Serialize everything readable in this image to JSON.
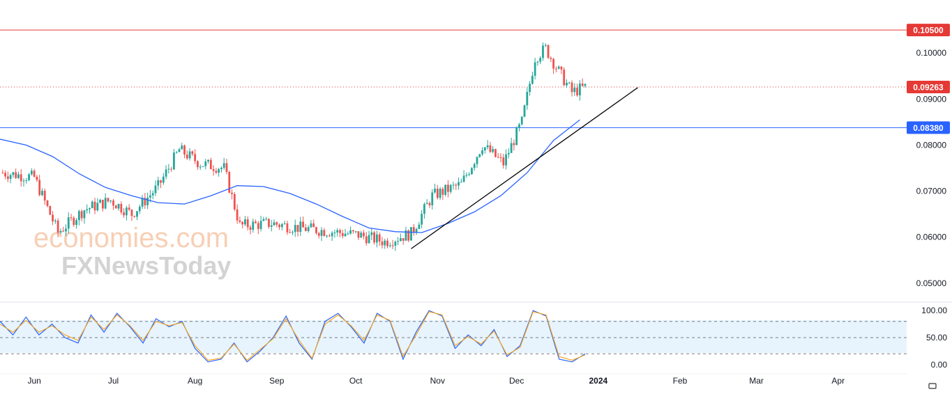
{
  "chart_data": [
    {
      "type": "candlestick",
      "panel": "price",
      "y_range": [
        0.0465,
        0.1085
      ],
      "y_ticks": [
        "0.10000",
        "0.09000",
        "0.08000",
        "0.07000",
        "0.06000",
        "0.05000"
      ],
      "x_range_days": "2023-05-19 to 2024-04-27",
      "x_ticks": [
        "Jun",
        "Jul",
        "Aug",
        "Sep",
        "Oct",
        "Nov",
        "Dec",
        "2024",
        "Feb",
        "Mar",
        "Apr"
      ],
      "horizontal_levels": [
        {
          "label": "0.10500",
          "value": 0.105,
          "color": "#e53935",
          "style": "solid"
        },
        {
          "label": "0.09263",
          "value": 0.09263,
          "color": "#e53935",
          "style": "dotted"
        },
        {
          "label": "0.08380",
          "value": 0.0838,
          "color": "#2962ff",
          "style": "solid"
        }
      ],
      "trendline": {
        "from": [
          "2023-10-22",
          0.0575
        ],
        "to": [
          "2024-01-16",
          0.0925
        ],
        "color": "#000000"
      },
      "moving_average": {
        "color": "#2962ff",
        "points": [
          [
            "2023-05-19",
            0.0813
          ],
          [
            "2023-05-29",
            0.08
          ],
          [
            "2023-06-08",
            0.0775
          ],
          [
            "2023-06-18",
            0.0738
          ],
          [
            "2023-06-28",
            0.0708
          ],
          [
            "2023-07-08",
            0.069
          ],
          [
            "2023-07-18",
            0.0675
          ],
          [
            "2023-07-28",
            0.0672
          ],
          [
            "2023-08-07",
            0.069
          ],
          [
            "2023-08-17",
            0.0712
          ],
          [
            "2023-08-27",
            0.071
          ],
          [
            "2023-09-06",
            0.0695
          ],
          [
            "2023-09-16",
            0.0672
          ],
          [
            "2023-09-26",
            0.0645
          ],
          [
            "2023-10-06",
            0.062
          ],
          [
            "2023-10-16",
            0.0612
          ],
          [
            "2023-10-26",
            0.061
          ],
          [
            "2023-11-05",
            0.063
          ],
          [
            "2023-11-15",
            0.0655
          ],
          [
            "2023-11-25",
            0.069
          ],
          [
            "2023-12-05",
            0.074
          ],
          [
            "2023-12-15",
            0.081
          ],
          [
            "2023-12-25",
            0.0855
          ]
        ]
      },
      "candle_colors": {
        "up": "#26a69a",
        "down": "#ef5350"
      },
      "candles_sampled": [
        {
          "date": "2023-05-20",
          "close": 0.074
        },
        {
          "date": "2023-06-01",
          "close": 0.073
        },
        {
          "date": "2023-06-10",
          "close": 0.061
        },
        {
          "date": "2023-06-20",
          "close": 0.066
        },
        {
          "date": "2023-06-30",
          "close": 0.068
        },
        {
          "date": "2023-07-08",
          "close": 0.065
        },
        {
          "date": "2023-07-18",
          "close": 0.071
        },
        {
          "date": "2023-07-26",
          "close": 0.079
        },
        {
          "date": "2023-08-03",
          "close": 0.076
        },
        {
          "date": "2023-08-12",
          "close": 0.075
        },
        {
          "date": "2023-08-18",
          "close": 0.0625
        },
        {
          "date": "2023-08-30",
          "close": 0.063
        },
        {
          "date": "2023-09-10",
          "close": 0.062
        },
        {
          "date": "2023-09-22",
          "close": 0.0612
        },
        {
          "date": "2023-10-02",
          "close": 0.0605
        },
        {
          "date": "2023-10-12",
          "close": 0.059
        },
        {
          "date": "2023-10-22",
          "close": 0.0608
        },
        {
          "date": "2023-10-30",
          "close": 0.069
        },
        {
          "date": "2023-11-10",
          "close": 0.0715
        },
        {
          "date": "2023-11-18",
          "close": 0.08
        },
        {
          "date": "2023-11-26",
          "close": 0.076
        },
        {
          "date": "2023-12-03",
          "close": 0.085
        },
        {
          "date": "2023-12-08",
          "close": 0.099
        },
        {
          "date": "2023-12-12",
          "close": 0.101
        },
        {
          "date": "2023-12-17",
          "close": 0.096
        },
        {
          "date": "2023-12-22",
          "close": 0.0915
        },
        {
          "date": "2023-12-27",
          "close": 0.0926
        }
      ]
    },
    {
      "type": "line",
      "panel": "oscillator",
      "y_range": [
        -8,
        108
      ],
      "y_ticks": [
        "100.00",
        "50.00",
        "0.00"
      ],
      "bands": [
        80,
        50,
        20
      ],
      "series": [
        {
          "color": "#2962ff",
          "values": [
            [
              0,
              80
            ],
            [
              5,
              55
            ],
            [
              10,
              88
            ],
            [
              15,
              55
            ],
            [
              20,
              75
            ],
            [
              25,
              50
            ],
            [
              30,
              40
            ],
            [
              35,
              92
            ],
            [
              40,
              60
            ],
            [
              45,
              95
            ],
            [
              50,
              70
            ],
            [
              55,
              40
            ],
            [
              60,
              85
            ],
            [
              65,
              70
            ],
            [
              70,
              80
            ],
            [
              75,
              30
            ],
            [
              80,
              5
            ],
            [
              85,
              10
            ],
            [
              90,
              40
            ],
            [
              95,
              5
            ],
            [
              100,
              25
            ],
            [
              105,
              50
            ],
            [
              110,
              90
            ],
            [
              115,
              40
            ],
            [
              120,
              10
            ],
            [
              125,
              80
            ],
            [
              130,
              95
            ],
            [
              135,
              70
            ],
            [
              140,
              40
            ],
            [
              145,
              95
            ],
            [
              150,
              80
            ],
            [
              155,
              10
            ],
            [
              160,
              60
            ],
            [
              165,
              100
            ],
            [
              170,
              90
            ],
            [
              175,
              30
            ],
            [
              180,
              55
            ],
            [
              185,
              35
            ],
            [
              190,
              65
            ],
            [
              195,
              15
            ],
            [
              200,
              35
            ],
            [
              205,
              100
            ],
            [
              210,
              90
            ],
            [
              215,
              10
            ],
            [
              220,
              5
            ],
            [
              225,
              20
            ]
          ]
        },
        {
          "color": "#f5a623",
          "values": [
            [
              0,
              75
            ],
            [
              5,
              60
            ],
            [
              10,
              82
            ],
            [
              15,
              60
            ],
            [
              20,
              72
            ],
            [
              25,
              55
            ],
            [
              30,
              45
            ],
            [
              35,
              88
            ],
            [
              40,
              65
            ],
            [
              45,
              92
            ],
            [
              50,
              72
            ],
            [
              55,
              45
            ],
            [
              60,
              80
            ],
            [
              65,
              72
            ],
            [
              70,
              78
            ],
            [
              75,
              35
            ],
            [
              80,
              8
            ],
            [
              85,
              12
            ],
            [
              90,
              38
            ],
            [
              95,
              8
            ],
            [
              100,
              28
            ],
            [
              105,
              48
            ],
            [
              110,
              85
            ],
            [
              115,
              45
            ],
            [
              120,
              12
            ],
            [
              125,
              75
            ],
            [
              130,
              92
            ],
            [
              135,
              72
            ],
            [
              140,
              45
            ],
            [
              145,
              92
            ],
            [
              150,
              82
            ],
            [
              155,
              15
            ],
            [
              160,
              55
            ],
            [
              165,
              98
            ],
            [
              170,
              92
            ],
            [
              175,
              35
            ],
            [
              180,
              52
            ],
            [
              185,
              38
            ],
            [
              190,
              62
            ],
            [
              195,
              18
            ],
            [
              200,
              32
            ],
            [
              205,
              98
            ],
            [
              210,
              92
            ],
            [
              215,
              15
            ],
            [
              220,
              8
            ],
            [
              225,
              18
            ]
          ]
        }
      ]
    }
  ],
  "watermark": {
    "line1": "economies.com",
    "line2": "FXNewsToday"
  },
  "icons": {
    "corner": "settings-icon"
  }
}
